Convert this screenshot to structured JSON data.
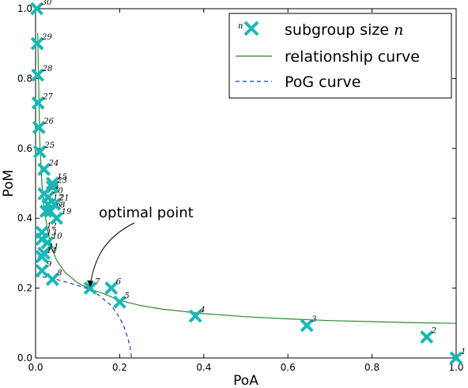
{
  "chart_data": {
    "type": "scatter",
    "xlabel": "PoA",
    "ylabel": "PoM",
    "xlim": [
      0.0,
      1.0
    ],
    "ylim": [
      0.0,
      1.0
    ],
    "xticks": [
      "0.0",
      "0.2",
      "0.4",
      "0.6",
      "0.8",
      "1.0"
    ],
    "yticks": [
      "0.0",
      "0.2",
      "0.4",
      "0.6",
      "0.8",
      "1.0"
    ],
    "grid": false,
    "legend_position": "top-right",
    "legend": {
      "marker_label_n": "n",
      "scatter_label": "subgroup size",
      "scatter_label_var": "n",
      "curve_label": "relationship curve",
      "pog_label": "PoG curve"
    },
    "colors": {
      "points": "#19b8b4",
      "relationship_curve": "#2e8b2e",
      "pog_curve": "#1f3fbf"
    },
    "annotation": {
      "text": "optimal point",
      "target": [
        0.13,
        0.2
      ]
    },
    "series": [
      {
        "kind": "scatter",
        "points": [
          {
            "label": "1",
            "x": 1.0,
            "y": 0.0
          },
          {
            "label": "2",
            "x": 0.93,
            "y": 0.06
          },
          {
            "label": "3",
            "x": 0.645,
            "y": 0.093
          },
          {
            "label": "4",
            "x": 0.38,
            "y": 0.12
          },
          {
            "label": "5",
            "x": 0.2,
            "y": 0.16
          },
          {
            "label": "6",
            "x": 0.18,
            "y": 0.2
          },
          {
            "label": "7",
            "x": 0.13,
            "y": 0.2
          },
          {
            "label": "8",
            "x": 0.04,
            "y": 0.225
          },
          {
            "label": "9",
            "x": 0.015,
            "y": 0.25
          },
          {
            "label": "10",
            "x": 0.028,
            "y": 0.33
          },
          {
            "label": "11",
            "x": 0.02,
            "y": 0.3
          },
          {
            "label": "12",
            "x": 0.015,
            "y": 0.36
          },
          {
            "label": "13",
            "x": 0.015,
            "y": 0.34
          },
          {
            "label": "14",
            "x": 0.015,
            "y": 0.29
          },
          {
            "label": "15",
            "x": 0.04,
            "y": 0.5
          },
          {
            "label": "16",
            "x": 0.025,
            "y": 0.42
          },
          {
            "label": "17",
            "x": 0.03,
            "y": 0.44
          },
          {
            "label": "18",
            "x": 0.035,
            "y": 0.42
          },
          {
            "label": "19",
            "x": 0.05,
            "y": 0.4
          },
          {
            "label": "20",
            "x": 0.03,
            "y": 0.46
          },
          {
            "label": "21",
            "x": 0.045,
            "y": 0.44
          },
          {
            "label": "22",
            "x": 0.02,
            "y": 0.47
          },
          {
            "label": "23",
            "x": 0.04,
            "y": 0.49
          },
          {
            "label": "24",
            "x": 0.02,
            "y": 0.54
          },
          {
            "label": "25",
            "x": 0.01,
            "y": 0.59
          },
          {
            "label": "26",
            "x": 0.008,
            "y": 0.66
          },
          {
            "label": "27",
            "x": 0.006,
            "y": 0.73
          },
          {
            "label": "28",
            "x": 0.005,
            "y": 0.81
          },
          {
            "label": "29",
            "x": 0.004,
            "y": 0.9
          },
          {
            "label": "30",
            "x": 0.003,
            "y": 1.0
          }
        ]
      },
      {
        "kind": "line",
        "x": [
          0.005,
          0.01,
          0.015,
          0.02,
          0.03,
          0.04,
          0.05,
          0.07,
          0.1,
          0.13,
          0.16,
          0.2,
          0.25,
          0.3,
          0.4,
          0.5,
          0.6,
          0.7,
          0.8,
          0.9,
          1.0
        ],
        "y": [
          0.93,
          0.62,
          0.5,
          0.43,
          0.355,
          0.31,
          0.28,
          0.245,
          0.215,
          0.197,
          0.185,
          0.165,
          0.15,
          0.14,
          0.127,
          0.118,
          0.112,
          0.107,
          0.104,
          0.101,
          0.099
        ]
      },
      {
        "kind": "line",
        "x": [
          0.0,
          0.04,
          0.08,
          0.12,
          0.15,
          0.18,
          0.2,
          0.21,
          0.22,
          0.225,
          0.228
        ],
        "y": [
          0.235,
          0.228,
          0.215,
          0.2,
          0.18,
          0.15,
          0.115,
          0.09,
          0.055,
          0.03,
          0.0
        ]
      }
    ]
  }
}
